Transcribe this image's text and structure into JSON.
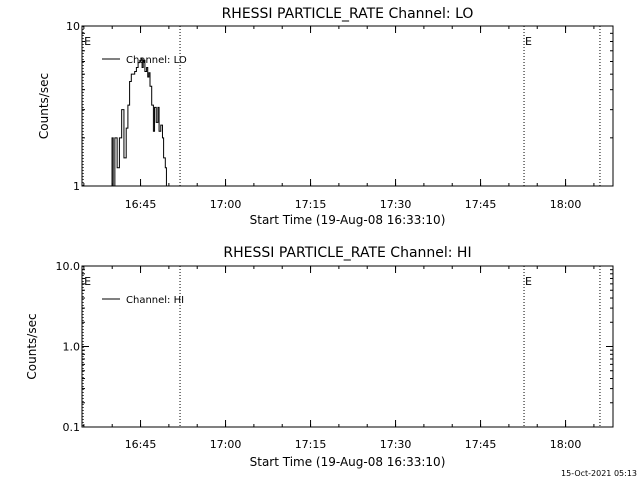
{
  "chart_data": [
    {
      "type": "line",
      "title": "RHESSI PARTICLE_RATE Channel: LO",
      "xlabel": "Start Time (19-Aug-08 16:33:10)",
      "ylabel": "Counts/sec",
      "yscale": "log",
      "ylim": [
        1,
        10
      ],
      "yticks": [
        {
          "value": 1,
          "label": "1"
        },
        {
          "value": 10,
          "label": "10"
        }
      ],
      "xlim_minutes": [
        16.5,
        110.2
      ],
      "xticks": [
        {
          "minutes": 26.83,
          "label": "16:45"
        },
        {
          "minutes": 41.83,
          "label": "17:00"
        },
        {
          "minutes": 56.83,
          "label": "17:15"
        },
        {
          "minutes": 71.83,
          "label": "17:30"
        },
        {
          "minutes": 86.83,
          "label": "17:45"
        },
        {
          "minutes": 101.83,
          "label": "18:00"
        }
      ],
      "event_lines_minutes": [
        16.7,
        33.8,
        94.5,
        107.9
      ],
      "event_marks": [
        {
          "minutes": 16.7,
          "label": "E"
        },
        {
          "minutes": 94.5,
          "label": "E"
        }
      ],
      "legend": "Channel: LO",
      "legend_position": "top-left",
      "series": [
        {
          "name": "Channel: LO",
          "x": [
            21.7,
            21.8,
            22.0,
            22.3,
            22.7,
            23.1,
            23.5,
            23.9,
            24.3,
            24.6,
            24.9,
            25.2,
            25.5,
            25.8,
            26.1,
            26.4,
            26.7,
            26.9,
            27.1,
            27.3,
            27.6,
            27.9,
            28.1,
            28.3,
            28.5,
            28.8,
            29.1,
            29.3,
            29.6,
            29.9,
            30.1,
            30.4,
            30.7,
            30.9,
            31.2,
            31.4
          ],
          "y": [
            1,
            2,
            1,
            2,
            1.3,
            2,
            3,
            1.5,
            2.3,
            3.2,
            4.5,
            5,
            5,
            5.2,
            5.5,
            5.9,
            6.1,
            6.3,
            5.5,
            6.1,
            5.2,
            5.5,
            4.8,
            5.1,
            4.2,
            3.2,
            2.2,
            3.1,
            2.5,
            3.1,
            2.2,
            2.4,
            2,
            1.5,
            1.3,
            1
          ]
        }
      ]
    },
    {
      "type": "line",
      "title": "RHESSI PARTICLE_RATE Channel: HI",
      "xlabel": "Start Time (19-Aug-08 16:33:10)",
      "ylabel": "Counts/sec",
      "yscale": "log",
      "ylim": [
        0.1,
        10
      ],
      "yticks": [
        {
          "value": 0.1,
          "label": "0.1"
        },
        {
          "value": 1,
          "label": "1.0"
        },
        {
          "value": 10,
          "label": "10.0"
        }
      ],
      "xlim_minutes": [
        16.5,
        110.2
      ],
      "xticks": [
        {
          "minutes": 26.83,
          "label": "16:45"
        },
        {
          "minutes": 41.83,
          "label": "17:00"
        },
        {
          "minutes": 56.83,
          "label": "17:15"
        },
        {
          "minutes": 71.83,
          "label": "17:30"
        },
        {
          "minutes": 86.83,
          "label": "17:45"
        },
        {
          "minutes": 101.83,
          "label": "18:00"
        }
      ],
      "event_lines_minutes": [
        16.7,
        33.8,
        94.5,
        107.9
      ],
      "event_marks": [
        {
          "minutes": 16.7,
          "label": "E"
        },
        {
          "minutes": 94.5,
          "label": "E"
        }
      ],
      "legend": "Channel: HI",
      "legend_position": "top-left",
      "series": [
        {
          "name": "Channel: HI",
          "x": [],
          "y": []
        }
      ]
    }
  ],
  "footer": {
    "timestamp": "15-Oct-2021 05:13"
  }
}
